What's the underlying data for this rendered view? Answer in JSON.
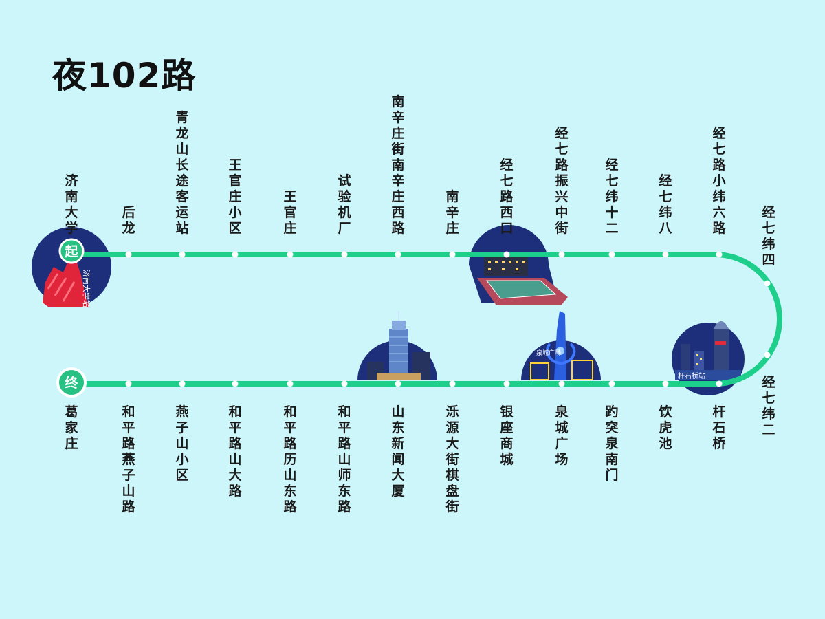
{
  "title": "夜102路",
  "badges": {
    "start": "起",
    "end": "终"
  },
  "colors": {
    "line": "#1ecf8c",
    "background": "#cdf6fb",
    "badge_green": "#27c283",
    "night": "#1d2f7a"
  },
  "stops_top": [
    "济南大学",
    "后龙",
    "青龙山长途客运站",
    "王官庄小区",
    "王官庄",
    "试验机厂",
    "南辛庄街南辛庄西路",
    "南辛庄",
    "经七路西口",
    "经七路振兴中街",
    "经七纬十二",
    "经七纬八",
    "经七路小纬六路"
  ],
  "stops_right": [
    "经七纬四",
    "经七纬二"
  ],
  "stops_bottom": [
    "葛家庄",
    "和平路燕子山路",
    "燕子山小区",
    "和平路山大路",
    "和平路历山东路",
    "和平路山师东路",
    "山东新闻大厦",
    "泺源大街棋盘街",
    "银座商城",
    "泉城广场",
    "趵突泉南门",
    "饮虎池",
    "杆石桥"
  ],
  "landmark_text": {
    "jinan_university": "济南大学站",
    "quancheng": "泉城广场",
    "ganshiqiao": "杆石桥站"
  }
}
